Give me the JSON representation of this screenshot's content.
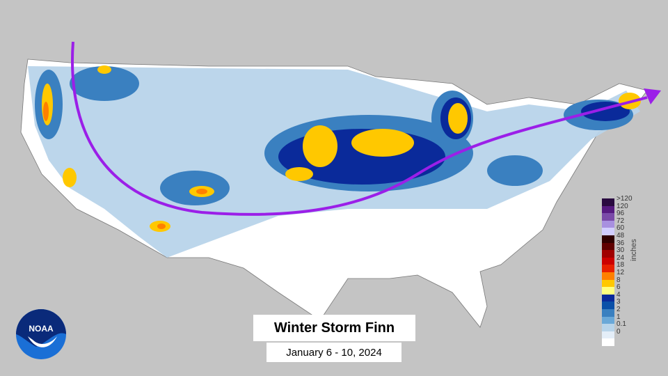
{
  "title": "Winter Storm Finn",
  "subtitle": "January 6 - 10, 2024",
  "logo": {
    "text": "NOAA"
  },
  "legend": {
    "unit": "inches",
    "labels": [
      ">120",
      "120",
      "96",
      "72",
      "60",
      "48",
      "36",
      "30",
      "24",
      "18",
      "12",
      "8",
      "6",
      "4",
      "3",
      "2",
      "1",
      "0.1",
      "0"
    ],
    "colors": [
      "#2a0a40",
      "#561a80",
      "#7a4aa8",
      "#a890e0",
      "#d2ceff",
      "#300000",
      "#600000",
      "#a00000",
      "#cc0000",
      "#e82000",
      "#ff8000",
      "#ffc800",
      "#ffff80",
      "#0a2a9a",
      "#0a50a8",
      "#3a80c0",
      "#6aa8d8",
      "#b8d4ea",
      "#e4eef8",
      "#ffffff"
    ]
  },
  "colors": {
    "storm_track": "#9b1fe8",
    "land_outside": "#c4c4c4",
    "us_land": "#ffffff"
  }
}
